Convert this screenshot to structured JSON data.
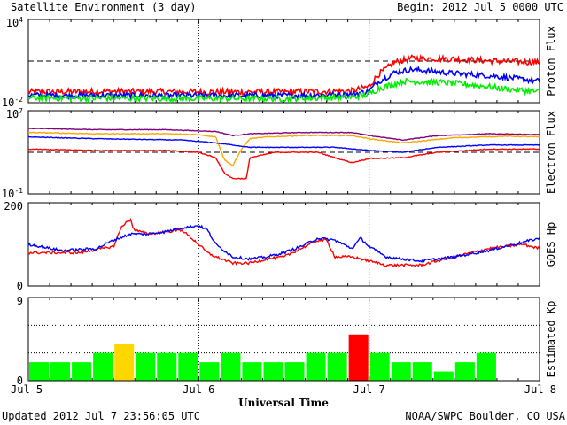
{
  "header": {
    "title": "Satellite Environment (3 day)",
    "begin": "Begin:  2012 Jul 5 0000 UTC"
  },
  "footer": {
    "updated": "Updated 2012 Jul  7 23:56:05 UTC",
    "credit": "NOAA/SWPC Boulder, CO USA"
  },
  "colors": {
    "red": "#ff0000",
    "blue": "#0000ff",
    "green": "#00ee00",
    "orange": "#ffa500",
    "purple": "#800080",
    "kp_green": "#00ff00",
    "kp_yellow": "#ffd700",
    "kp_red": "#ff0000"
  },
  "chart_data": [
    {
      "type": "line",
      "panel": "proton",
      "ylabel": "Proton Flux",
      "y_scale": "log",
      "ylim": [
        0.01,
        10000
      ],
      "y_ticks": [
        {
          "base": "10",
          "exp": "4",
          "value": 10000
        },
        {
          "base": "10",
          "exp": "-2",
          "value": 0.01
        }
      ],
      "threshold": 10,
      "x_days": [
        0,
        3
      ],
      "series": [
        {
          "color": "red",
          "noise_dex": 0.22,
          "x": [
            0,
            0.5,
            1,
            1.5,
            1.9,
            2.0,
            2.05,
            2.15,
            2.25,
            2.5,
            2.75,
            3.0
          ],
          "y": [
            0.06,
            0.065,
            0.06,
            0.06,
            0.07,
            0.15,
            1.0,
            8,
            16,
            14,
            10,
            8
          ]
        },
        {
          "color": "blue",
          "noise_dex": 0.2,
          "x": [
            0,
            0.5,
            1,
            1.5,
            1.9,
            2.0,
            2.05,
            2.15,
            2.25,
            2.5,
            2.75,
            3.0
          ],
          "y": [
            0.035,
            0.034,
            0.033,
            0.033,
            0.04,
            0.07,
            0.3,
            1.5,
            2.5,
            1.3,
            0.8,
            0.35
          ]
        },
        {
          "color": "green",
          "noise_dex": 0.22,
          "x": [
            0,
            0.5,
            1,
            1.5,
            1.9,
            2.0,
            2.05,
            2.2,
            2.4,
            2.6,
            2.8,
            3.0
          ],
          "y": [
            0.022,
            0.021,
            0.02,
            0.02,
            0.025,
            0.04,
            0.1,
            0.35,
            0.3,
            0.2,
            0.1,
            0.06
          ]
        }
      ]
    },
    {
      "type": "line",
      "panel": "electron",
      "ylabel": "Electron Flux",
      "y_scale": "log",
      "ylim": [
        0.1,
        10000000
      ],
      "y_ticks": [
        {
          "base": "10",
          "exp": "7",
          "value": 10000000
        },
        {
          "base": "10",
          "exp": "-1",
          "value": 0.1
        }
      ],
      "threshold": 1000,
      "x_days": [
        0,
        3
      ],
      "series": [
        {
          "color": "purple",
          "noise_dex": 0.03,
          "x": [
            0,
            0.4,
            0.8,
            1.1,
            1.2,
            1.3,
            1.6,
            1.9,
            2.0,
            2.2,
            2.4,
            2.7,
            3.0
          ],
          "y": [
            200000,
            150000,
            150000,
            100000,
            40000,
            60000,
            80000,
            80000,
            40000,
            15000,
            40000,
            60000,
            50000
          ]
        },
        {
          "color": "orange",
          "noise_dex": 0.04,
          "x": [
            0,
            0.4,
            0.8,
            1.0,
            1.1,
            1.15,
            1.2,
            1.25,
            1.3,
            1.4,
            1.6,
            1.9,
            2.0,
            2.2,
            2.5,
            2.8,
            3.0
          ],
          "y": [
            80000,
            60000,
            60000,
            50000,
            30000,
            200,
            50,
            2000,
            20000,
            30000,
            40000,
            40000,
            20000,
            8000,
            25000,
            35000,
            30000
          ]
        },
        {
          "color": "blue",
          "noise_dex": 0.03,
          "x": [
            0,
            0.4,
            0.9,
            1.1,
            1.2,
            1.3,
            1.5,
            1.8,
            2.0,
            2.2,
            2.4,
            2.7,
            3.0
          ],
          "y": [
            30000,
            20000,
            15000,
            8000,
            5000,
            3000,
            3000,
            3000,
            1500,
            1000,
            3000,
            5000,
            5000
          ]
        },
        {
          "color": "red",
          "noise_dex": 0.04,
          "x": [
            0,
            0.4,
            0.8,
            1.0,
            1.1,
            1.15,
            1.2,
            1.28,
            1.3,
            1.45,
            1.7,
            1.8,
            1.9,
            2.0,
            2.2,
            2.4,
            2.7,
            3.0
          ],
          "y": [
            2000,
            1500,
            1500,
            1000,
            300,
            10,
            3,
            3,
            300,
            1000,
            1000,
            300,
            100,
            250,
            300,
            1000,
            2000,
            2000
          ]
        }
      ]
    },
    {
      "type": "line",
      "panel": "goes_hp",
      "ylabel": "GOES Hp",
      "ylim": [
        0,
        200
      ],
      "y_ticks": [
        {
          "label": "200",
          "value": 200
        },
        {
          "label": "0",
          "value": 0
        }
      ],
      "x_days": [
        0,
        3
      ],
      "series": [
        {
          "color": "red",
          "noise_dex": 0,
          "noise_abs": 3,
          "x": [
            0,
            0.3,
            0.5,
            0.55,
            0.6,
            0.62,
            0.7,
            0.8,
            0.9,
            1.0,
            1.05,
            1.1,
            1.2,
            1.3,
            1.4,
            1.5,
            1.6,
            1.7,
            1.75,
            1.8,
            1.9,
            2.0,
            2.1,
            2.3,
            2.5,
            2.7,
            2.9,
            3.0
          ],
          "y": [
            80,
            80,
            95,
            145,
            160,
            135,
            125,
            130,
            135,
            100,
            80,
            70,
            55,
            55,
            65,
            70,
            90,
            110,
            110,
            70,
            70,
            60,
            50,
            50,
            70,
            90,
            100,
            90
          ]
        },
        {
          "color": "blue",
          "noise_dex": 0,
          "noise_abs": 3,
          "x": [
            0,
            0.2,
            0.4,
            0.5,
            0.6,
            0.7,
            0.8,
            0.9,
            1.0,
            1.05,
            1.1,
            1.2,
            1.3,
            1.4,
            1.5,
            1.6,
            1.7,
            1.8,
            1.9,
            1.95,
            2.0,
            2.1,
            2.3,
            2.5,
            2.7,
            2.9,
            3.0
          ],
          "y": [
            100,
            85,
            90,
            110,
            125,
            125,
            130,
            140,
            145,
            135,
            100,
            70,
            65,
            70,
            80,
            95,
            115,
            110,
            90,
            115,
            95,
            70,
            60,
            70,
            85,
            105,
            115
          ]
        }
      ]
    },
    {
      "type": "bar",
      "panel": "kp",
      "ylabel": "Estimated Kp",
      "ylim": [
        0,
        9
      ],
      "y_ticks": [
        {
          "label": "9",
          "value": 9
        },
        {
          "label": "0",
          "value": 0
        }
      ],
      "values": [
        2,
        2,
        2,
        3,
        4,
        3,
        3,
        3,
        2,
        3,
        2,
        2,
        2,
        3,
        3,
        5,
        3,
        2,
        2,
        1,
        2,
        3,
        0,
        0
      ],
      "bar_colors": [
        "kp_green",
        "kp_green",
        "kp_green",
        "kp_green",
        "kp_yellow",
        "kp_green",
        "kp_green",
        "kp_green",
        "kp_green",
        "kp_green",
        "kp_green",
        "kp_green",
        "kp_green",
        "kp_green",
        "kp_green",
        "kp_red",
        "kp_green",
        "kp_green",
        "kp_green",
        "kp_green",
        "kp_green",
        "kp_green",
        "kp_green",
        "kp_green"
      ]
    }
  ],
  "x_axis": {
    "ticks": [
      "Jul 5",
      "Jul 6",
      "Jul 7",
      "Jul 8"
    ],
    "title": "Universal Time"
  }
}
